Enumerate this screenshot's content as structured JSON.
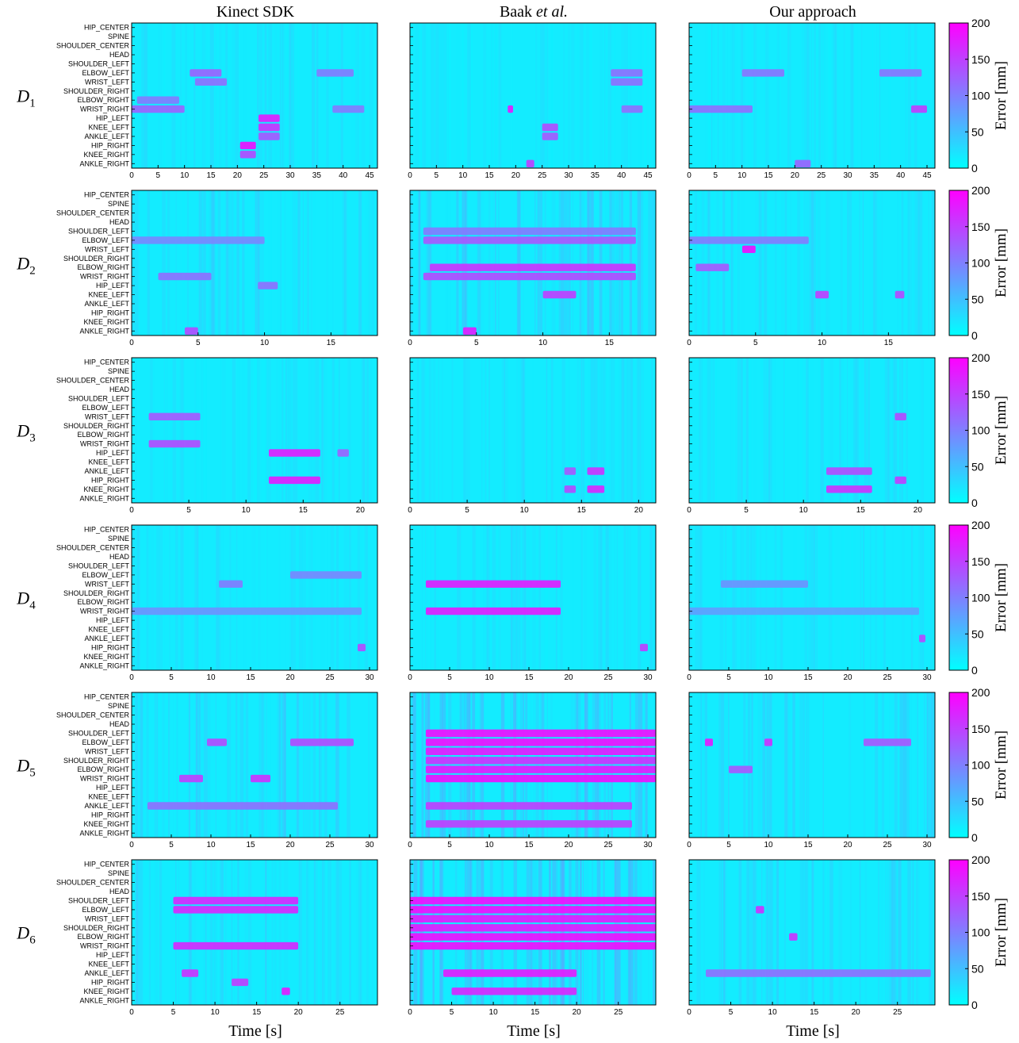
{
  "figure": {
    "column_titles": [
      {
        "text": "Kinect SDK",
        "italic_suffix": ""
      },
      {
        "text": "Baak ",
        "italic_suffix": "et al."
      },
      {
        "text": "Our approach",
        "italic_suffix": ""
      }
    ],
    "row_labels": [
      {
        "letter": "D",
        "sub": "1"
      },
      {
        "letter": "D",
        "sub": "2"
      },
      {
        "letter": "D",
        "sub": "3"
      },
      {
        "letter": "D",
        "sub": "4"
      },
      {
        "letter": "D",
        "sub": "5"
      },
      {
        "letter": "D",
        "sub": "6"
      }
    ],
    "joints": [
      "HIP_CENTER",
      "SPINE",
      "SHOULDER_CENTER",
      "HEAD",
      "SHOULDER_LEFT",
      "ELBOW_LEFT",
      "WRIST_LEFT",
      "SHOULDER_RIGHT",
      "ELBOW_RIGHT",
      "WRIST_RIGHT",
      "HIP_LEFT",
      "KNEE_LEFT",
      "ANKLE_LEFT",
      "HIP_RIGHT",
      "KNEE_RIGHT",
      "ANKLE_RIGHT"
    ],
    "xlabel": "Time [s]",
    "colorbar": {
      "label": "Error [mm]",
      "range": [
        0,
        200
      ],
      "ticks": [
        0,
        50,
        100,
        150,
        200
      ],
      "color_low": "#00ffff",
      "color_high": "#ff00ff"
    }
  },
  "chart_data": {
    "type": "heatmap",
    "rows": [
      {
        "dataset": "D1",
        "duration": 46.5,
        "xticks": [
          0,
          5,
          10,
          15,
          20,
          25,
          30,
          35,
          40,
          45
        ]
      },
      {
        "dataset": "D2",
        "duration": 18.5,
        "xticks": [
          0,
          5,
          10,
          15
        ]
      },
      {
        "dataset": "D3",
        "duration": 21.5,
        "xticks": [
          0,
          5,
          10,
          15,
          20
        ]
      },
      {
        "dataset": "D4",
        "duration": 31,
        "xticks": [
          0,
          5,
          10,
          15,
          20,
          25,
          30
        ]
      },
      {
        "dataset": "D5",
        "duration": 31,
        "xticks": [
          0,
          5,
          10,
          15,
          20,
          25,
          30
        ]
      },
      {
        "dataset": "D6",
        "duration": 29.5,
        "xticks": [
          0,
          5,
          10,
          15,
          20,
          25
        ]
      }
    ],
    "hotspots": [
      [
        [
          {
            "joint": "ELBOW_LEFT",
            "t0": 11,
            "t1": 17,
            "value": 130
          },
          {
            "joint": "WRIST_LEFT",
            "t0": 12,
            "t1": 18,
            "value": 120
          },
          {
            "joint": "WRIST_RIGHT",
            "t0": 0,
            "t1": 10,
            "value": 130
          },
          {
            "joint": "ELBOW_RIGHT",
            "t0": 1,
            "t1": 9,
            "value": 110
          },
          {
            "joint": "HIP_LEFT",
            "t0": 24,
            "t1": 28,
            "value": 190
          },
          {
            "joint": "KNEE_LEFT",
            "t0": 24,
            "t1": 28,
            "value": 170
          },
          {
            "joint": "ANKLE_LEFT",
            "t0": 24,
            "t1": 28,
            "value": 140
          },
          {
            "joint": "HIP_RIGHT",
            "t0": 20.5,
            "t1": 23.5,
            "value": 200
          },
          {
            "joint": "KNEE_RIGHT",
            "t0": 20.5,
            "t1": 23.5,
            "value": 150
          },
          {
            "joint": "ELBOW_LEFT",
            "t0": 35,
            "t1": 42,
            "value": 110
          },
          {
            "joint": "WRIST_RIGHT",
            "t0": 38,
            "t1": 44,
            "value": 110
          }
        ],
        [
          {
            "joint": "WRIST_RIGHT",
            "t0": 18.5,
            "t1": 19.5,
            "value": 190
          },
          {
            "joint": "KNEE_LEFT",
            "t0": 25,
            "t1": 28,
            "value": 150
          },
          {
            "joint": "ANKLE_LEFT",
            "t0": 25,
            "t1": 28,
            "value": 140
          },
          {
            "joint": "ANKLE_RIGHT",
            "t0": 22,
            "t1": 23.5,
            "value": 160
          },
          {
            "joint": "ELBOW_LEFT",
            "t0": 38,
            "t1": 44,
            "value": 120
          },
          {
            "joint": "WRIST_LEFT",
            "t0": 38,
            "t1": 44,
            "value": 120
          },
          {
            "joint": "WRIST_RIGHT",
            "t0": 40,
            "t1": 44,
            "value": 120
          }
        ],
        [
          {
            "joint": "ELBOW_LEFT",
            "t0": 10,
            "t1": 18,
            "value": 115
          },
          {
            "joint": "WRIST_RIGHT",
            "t0": 0,
            "t1": 12,
            "value": 120
          },
          {
            "joint": "WRIST_RIGHT",
            "t0": 42,
            "t1": 45,
            "value": 160
          },
          {
            "joint": "ELBOW_LEFT",
            "t0": 36,
            "t1": 44,
            "value": 115
          },
          {
            "joint": "ANKLE_RIGHT",
            "t0": 20,
            "t1": 23,
            "value": 130
          }
        ]
      ],
      [
        [
          {
            "joint": "WRIST_RIGHT",
            "t0": 2,
            "t1": 6,
            "value": 120
          },
          {
            "joint": "ANKLE_RIGHT",
            "t0": 4,
            "t1": 5,
            "value": 150
          },
          {
            "joint": "ELBOW_LEFT",
            "t0": 0,
            "t1": 10,
            "value": 100
          },
          {
            "joint": "HIP_LEFT",
            "t0": 9.5,
            "t1": 11,
            "value": 120
          }
        ],
        [
          {
            "joint": "ELBOW_RIGHT",
            "t0": 1.5,
            "t1": 17,
            "value": 170
          },
          {
            "joint": "WRIST_RIGHT",
            "t0": 1,
            "t1": 17,
            "value": 150
          },
          {
            "joint": "ELBOW_LEFT",
            "t0": 1,
            "t1": 17,
            "value": 140
          },
          {
            "joint": "SHOULDER_LEFT",
            "t0": 1,
            "t1": 17,
            "value": 110
          },
          {
            "joint": "ANKLE_RIGHT",
            "t0": 4,
            "t1": 5,
            "value": 190
          },
          {
            "joint": "KNEE_LEFT",
            "t0": 10,
            "t1": 12.5,
            "value": 160
          }
        ],
        [
          {
            "joint": "WRIST_LEFT",
            "t0": 4,
            "t1": 5,
            "value": 200
          },
          {
            "joint": "ELBOW_RIGHT",
            "t0": 0.5,
            "t1": 3,
            "value": 140
          },
          {
            "joint": "ELBOW_LEFT",
            "t0": 0,
            "t1": 9,
            "value": 110
          },
          {
            "joint": "KNEE_LEFT",
            "t0": 9.5,
            "t1": 10.5,
            "value": 160
          },
          {
            "joint": "KNEE_LEFT",
            "t0": 15.5,
            "t1": 16.2,
            "value": 150
          }
        ]
      ],
      [
        [
          {
            "joint": "HIP_LEFT",
            "t0": 12,
            "t1": 16.5,
            "value": 190
          },
          {
            "joint": "HIP_RIGHT",
            "t0": 12,
            "t1": 16.5,
            "value": 190
          },
          {
            "joint": "WRIST_LEFT",
            "t0": 1.5,
            "t1": 6,
            "value": 140
          },
          {
            "joint": "WRIST_RIGHT",
            "t0": 1.5,
            "t1": 6,
            "value": 150
          },
          {
            "joint": "HIP_LEFT",
            "t0": 18,
            "t1": 19,
            "value": 130
          }
        ],
        [
          {
            "joint": "KNEE_RIGHT",
            "t0": 15.5,
            "t1": 17,
            "value": 180
          },
          {
            "joint": "KNEE_RIGHT",
            "t0": 13.5,
            "t1": 14.5,
            "value": 150
          },
          {
            "joint": "ANKLE_LEFT",
            "t0": 15.5,
            "t1": 17,
            "value": 170
          },
          {
            "joint": "ANKLE_LEFT",
            "t0": 13.5,
            "t1": 14.5,
            "value": 140
          }
        ],
        [
          {
            "joint": "KNEE_RIGHT",
            "t0": 12,
            "t1": 16,
            "value": 170
          },
          {
            "joint": "ANKLE_LEFT",
            "t0": 12,
            "t1": 16,
            "value": 150
          },
          {
            "joint": "HIP_RIGHT",
            "t0": 18,
            "t1": 19,
            "value": 160
          },
          {
            "joint": "WRIST_LEFT",
            "t0": 18,
            "t1": 19,
            "value": 150
          }
        ]
      ],
      [
        [
          {
            "joint": "WRIST_RIGHT",
            "t0": 0,
            "t1": 29,
            "value": 90
          },
          {
            "joint": "WRIST_LEFT",
            "t0": 11,
            "t1": 14,
            "value": 110
          },
          {
            "joint": "ELBOW_LEFT",
            "t0": 20,
            "t1": 29,
            "value": 100
          },
          {
            "joint": "HIP_RIGHT",
            "t0": 28.5,
            "t1": 29.5,
            "value": 150
          }
        ],
        [
          {
            "joint": "WRIST_LEFT",
            "t0": 2,
            "t1": 19,
            "value": 190
          },
          {
            "joint": "WRIST_RIGHT",
            "t0": 2,
            "t1": 19,
            "value": 190
          },
          {
            "joint": "HIP_RIGHT",
            "t0": 29,
            "t1": 30,
            "value": 160
          }
        ],
        [
          {
            "joint": "WRIST_LEFT",
            "t0": 4,
            "t1": 15,
            "value": 90
          },
          {
            "joint": "WRIST_RIGHT",
            "t0": 0,
            "t1": 29,
            "value": 80
          },
          {
            "joint": "ANKLE_LEFT",
            "t0": 29,
            "t1": 29.8,
            "value": 150
          }
        ]
      ],
      [
        [
          {
            "joint": "ELBOW_LEFT",
            "t0": 20,
            "t1": 28,
            "value": 150
          },
          {
            "joint": "WRIST_RIGHT",
            "t0": 6,
            "t1": 9,
            "value": 160
          },
          {
            "joint": "WRIST_RIGHT",
            "t0": 15,
            "t1": 17.5,
            "value": 170
          },
          {
            "joint": "ELBOW_LEFT",
            "t0": 9.5,
            "t1": 12,
            "value": 150
          },
          {
            "joint": "ANKLE_LEFT",
            "t0": 2,
            "t1": 26,
            "value": 120
          }
        ],
        [
          {
            "joint": "SHOULDER_LEFT",
            "t0": 2,
            "t1": 31,
            "value": 200
          },
          {
            "joint": "ELBOW_LEFT",
            "t0": 2,
            "t1": 31,
            "value": 200
          },
          {
            "joint": "WRIST_LEFT",
            "t0": 2,
            "t1": 31,
            "value": 190
          },
          {
            "joint": "SHOULDER_RIGHT",
            "t0": 2,
            "t1": 31,
            "value": 170
          },
          {
            "joint": "ELBOW_RIGHT",
            "t0": 2,
            "t1": 31,
            "value": 190
          },
          {
            "joint": "WRIST_RIGHT",
            "t0": 2,
            "t1": 31,
            "value": 200
          },
          {
            "joint": "ANKLE_LEFT",
            "t0": 2,
            "t1": 28,
            "value": 160
          },
          {
            "joint": "KNEE_RIGHT",
            "t0": 2,
            "t1": 28,
            "value": 160
          }
        ],
        [
          {
            "joint": "ELBOW_LEFT",
            "t0": 2,
            "t1": 3,
            "value": 190
          },
          {
            "joint": "ELBOW_LEFT",
            "t0": 9.5,
            "t1": 10.5,
            "value": 170
          },
          {
            "joint": "ELBOW_RIGHT",
            "t0": 5,
            "t1": 8,
            "value": 140
          },
          {
            "joint": "ELBOW_LEFT",
            "t0": 22,
            "t1": 28,
            "value": 140
          }
        ]
      ],
      [
        [
          {
            "joint": "SHOULDER_LEFT",
            "t0": 5,
            "t1": 20,
            "value": 180
          },
          {
            "joint": "ELBOW_LEFT",
            "t0": 5,
            "t1": 20,
            "value": 180
          },
          {
            "joint": "WRIST_RIGHT",
            "t0": 5,
            "t1": 20,
            "value": 180
          },
          {
            "joint": "ANKLE_LEFT",
            "t0": 6,
            "t1": 8,
            "value": 170
          },
          {
            "joint": "HIP_RIGHT",
            "t0": 12,
            "t1": 14,
            "value": 160
          },
          {
            "joint": "KNEE_RIGHT",
            "t0": 18,
            "t1": 19,
            "value": 190
          }
        ],
        [
          {
            "joint": "SHOULDER_LEFT",
            "t0": 0,
            "t1": 29.5,
            "value": 200
          },
          {
            "joint": "ELBOW_LEFT",
            "t0": 0,
            "t1": 29.5,
            "value": 200
          },
          {
            "joint": "WRIST_LEFT",
            "t0": 0,
            "t1": 29.5,
            "value": 190
          },
          {
            "joint": "SHOULDER_RIGHT",
            "t0": 0,
            "t1": 29.5,
            "value": 190
          },
          {
            "joint": "ELBOW_RIGHT",
            "t0": 0,
            "t1": 29.5,
            "value": 200
          },
          {
            "joint": "WRIST_RIGHT",
            "t0": 0,
            "t1": 29.5,
            "value": 200
          },
          {
            "joint": "ANKLE_LEFT",
            "t0": 4,
            "t1": 20,
            "value": 190
          },
          {
            "joint": "KNEE_RIGHT",
            "t0": 5,
            "t1": 20,
            "value": 180
          }
        ],
        [
          {
            "joint": "ELBOW_LEFT",
            "t0": 8,
            "t1": 9,
            "value": 170
          },
          {
            "joint": "ELBOW_RIGHT",
            "t0": 12,
            "t1": 13,
            "value": 170
          },
          {
            "joint": "ANKLE_LEFT",
            "t0": 2,
            "t1": 29,
            "value": 120
          }
        ]
      ]
    ]
  }
}
